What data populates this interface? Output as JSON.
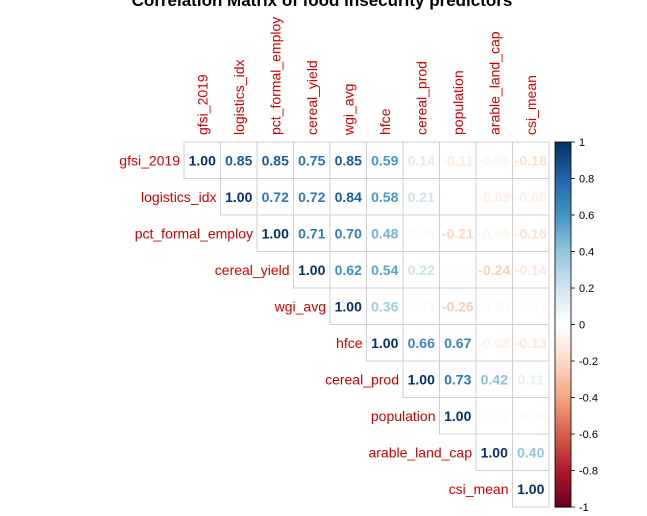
{
  "chart_data": {
    "type": "heatmap",
    "title": "Correlation Matrix of food insecurity predictors",
    "variables": [
      "gfsi_2019",
      "logistics_idx",
      "pct_formal_employ",
      "cereal_yield",
      "wgi_avg",
      "hfce",
      "cereal_prod",
      "population",
      "arable_land_cap",
      "csi_mean"
    ],
    "matrix": [
      [
        1.0,
        0.85,
        0.85,
        0.75,
        0.85,
        0.59,
        0.14,
        -0.11,
        -0.06,
        -0.18
      ],
      [
        null,
        1.0,
        0.72,
        0.72,
        0.84,
        0.58,
        0.21,
        0.0,
        -0.09,
        -0.08
      ],
      [
        null,
        null,
        1.0,
        0.71,
        0.7,
        0.48,
        0.04,
        -0.21,
        -0.06,
        -0.16
      ],
      [
        null,
        null,
        null,
        1.0,
        0.62,
        0.54,
        0.22,
        0.02,
        -0.24,
        -0.14
      ],
      [
        null,
        null,
        null,
        null,
        1.0,
        0.36,
        0.03,
        -0.26,
        -0.04,
        -0.03
      ],
      [
        null,
        null,
        null,
        null,
        null,
        1.0,
        0.66,
        0.67,
        -0.08,
        -0.13
      ],
      [
        null,
        null,
        null,
        null,
        null,
        null,
        1.0,
        0.73,
        0.42,
        0.11
      ],
      [
        null,
        null,
        null,
        null,
        null,
        null,
        null,
        1.0,
        0.03,
        -0.04
      ],
      [
        null,
        null,
        null,
        null,
        null,
        null,
        null,
        null,
        1.0,
        0.4
      ],
      [
        null,
        null,
        null,
        null,
        null,
        null,
        null,
        null,
        null,
        1.0
      ]
    ],
    "colorbar": {
      "range": [
        -1,
        1
      ],
      "ticks": [
        "-1",
        "-0.8",
        "-0.6",
        "-0.4",
        "-0.2",
        "0",
        "0.2",
        "0.4",
        "0.6",
        "0.8",
        "1"
      ],
      "colors": [
        "#67001F",
        "#B2182B",
        "#D6604D",
        "#F4A582",
        "#FDDBC7",
        "#FFFFFF",
        "#D1E5F0",
        "#92C5DE",
        "#4393C3",
        "#2166AC",
        "#053061"
      ]
    },
    "label_color": "#D10000"
  }
}
